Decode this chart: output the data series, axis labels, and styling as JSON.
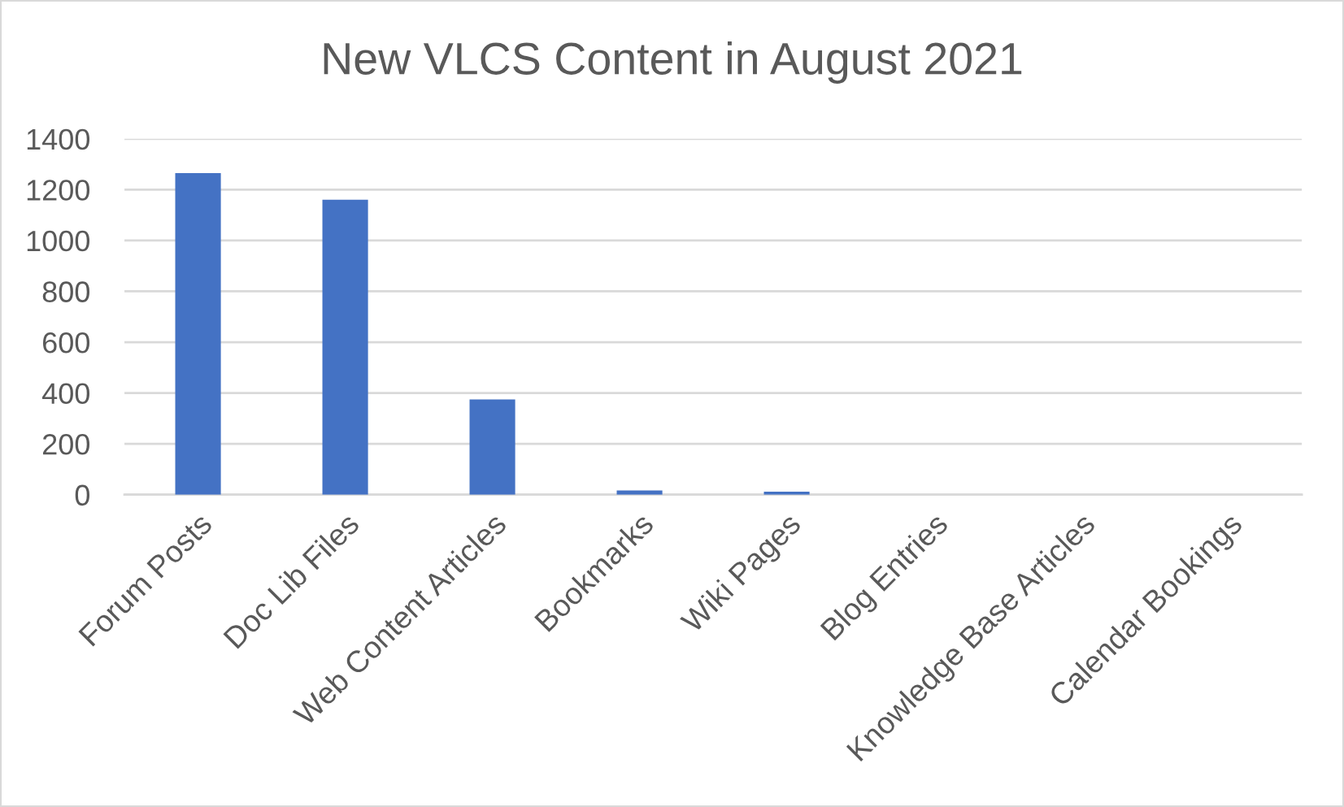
{
  "chart_data": {
    "type": "bar",
    "title": "New VLCS Content in August 2021",
    "categories": [
      "Forum Posts",
      "Doc Lib Files",
      "Web Content Articles",
      "Bookmarks",
      "Wiki Pages",
      "Blog Entries",
      "Knowledge Base Articles",
      "Calendar Bookings"
    ],
    "values": [
      1265,
      1160,
      375,
      17,
      12,
      0,
      0,
      0
    ],
    "color": "#4472c4",
    "ylim": [
      0,
      1400
    ],
    "yticks": [
      0,
      200,
      400,
      600,
      800,
      1000,
      1200,
      1400
    ],
    "grid": "y"
  }
}
